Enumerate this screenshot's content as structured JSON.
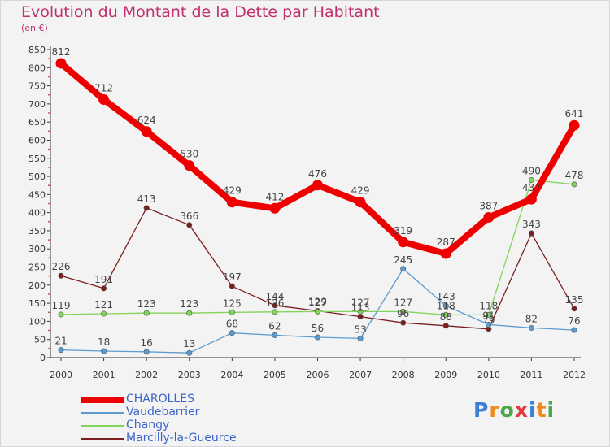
{
  "chart_data": {
    "type": "line",
    "title": "Evolution du Montant de la Dette par Habitant",
    "subtitle": "(en €)",
    "x": [
      "2000",
      "2001",
      "2002",
      "2003",
      "2004",
      "2005",
      "2006",
      "2007",
      "2008",
      "2009",
      "2010",
      "2011",
      "2012"
    ],
    "yticks": [
      "0",
      "50",
      "100",
      "150",
      "200",
      "250",
      "300",
      "350",
      "400",
      "450",
      "500",
      "550",
      "600",
      "650",
      "700",
      "750",
      "800",
      "850"
    ],
    "ylim": [
      0,
      850
    ],
    "grid": false,
    "legend_position": "bottom-left",
    "series": [
      {
        "name": "CHAROLLES",
        "color": "#ee0000",
        "values": [
          812,
          712,
          624,
          530,
          429,
          412,
          476,
          429,
          319,
          287,
          387,
          437,
          641
        ],
        "labels": [
          "812",
          "712",
          "624",
          "530",
          "429",
          "412",
          "476",
          "429",
          "319",
          "287",
          "387",
          "437",
          "641"
        ]
      },
      {
        "name": "Vaudebarrier",
        "color": "#5b9bd0",
        "values": [
          21,
          18,
          16,
          13,
          68,
          62,
          56,
          53,
          245,
          143,
          91,
          82,
          76
        ],
        "labels": [
          "21",
          "18",
          "16",
          "13",
          "68",
          "62",
          "56",
          "53",
          "245",
          "143",
          "91",
          "82",
          "76"
        ]
      },
      {
        "name": "Changy",
        "color": "#82d35a",
        "values": [
          119,
          121,
          123,
          123,
          125,
          126,
          127,
          127,
          127,
          118,
          118,
          490,
          478
        ],
        "labels": [
          "119",
          "121",
          "123",
          "123",
          "125",
          "126",
          "127",
          "127",
          "127",
          "118",
          "118",
          "490",
          "478"
        ]
      },
      {
        "name": "Marcilly-la-Gueurce",
        "color": "#7a1f1f",
        "values": [
          226,
          191,
          413,
          366,
          197,
          144,
          129,
          113,
          96,
          88,
          79,
          343,
          135
        ],
        "labels": [
          "226",
          "191",
          "413",
          "366",
          "197",
          "144",
          "129",
          "113",
          "96",
          "88",
          "79",
          "343",
          "135"
        ]
      }
    ]
  },
  "logo": {
    "letters": [
      "P",
      "r",
      "o",
      "x",
      "i",
      "t",
      "i"
    ],
    "colors": [
      "#3b7fd6",
      "#f08a1c",
      "#4aa84a",
      "#e23a3a",
      "#3b7fd6",
      "#f08a1c",
      "#4aa84a"
    ]
  }
}
